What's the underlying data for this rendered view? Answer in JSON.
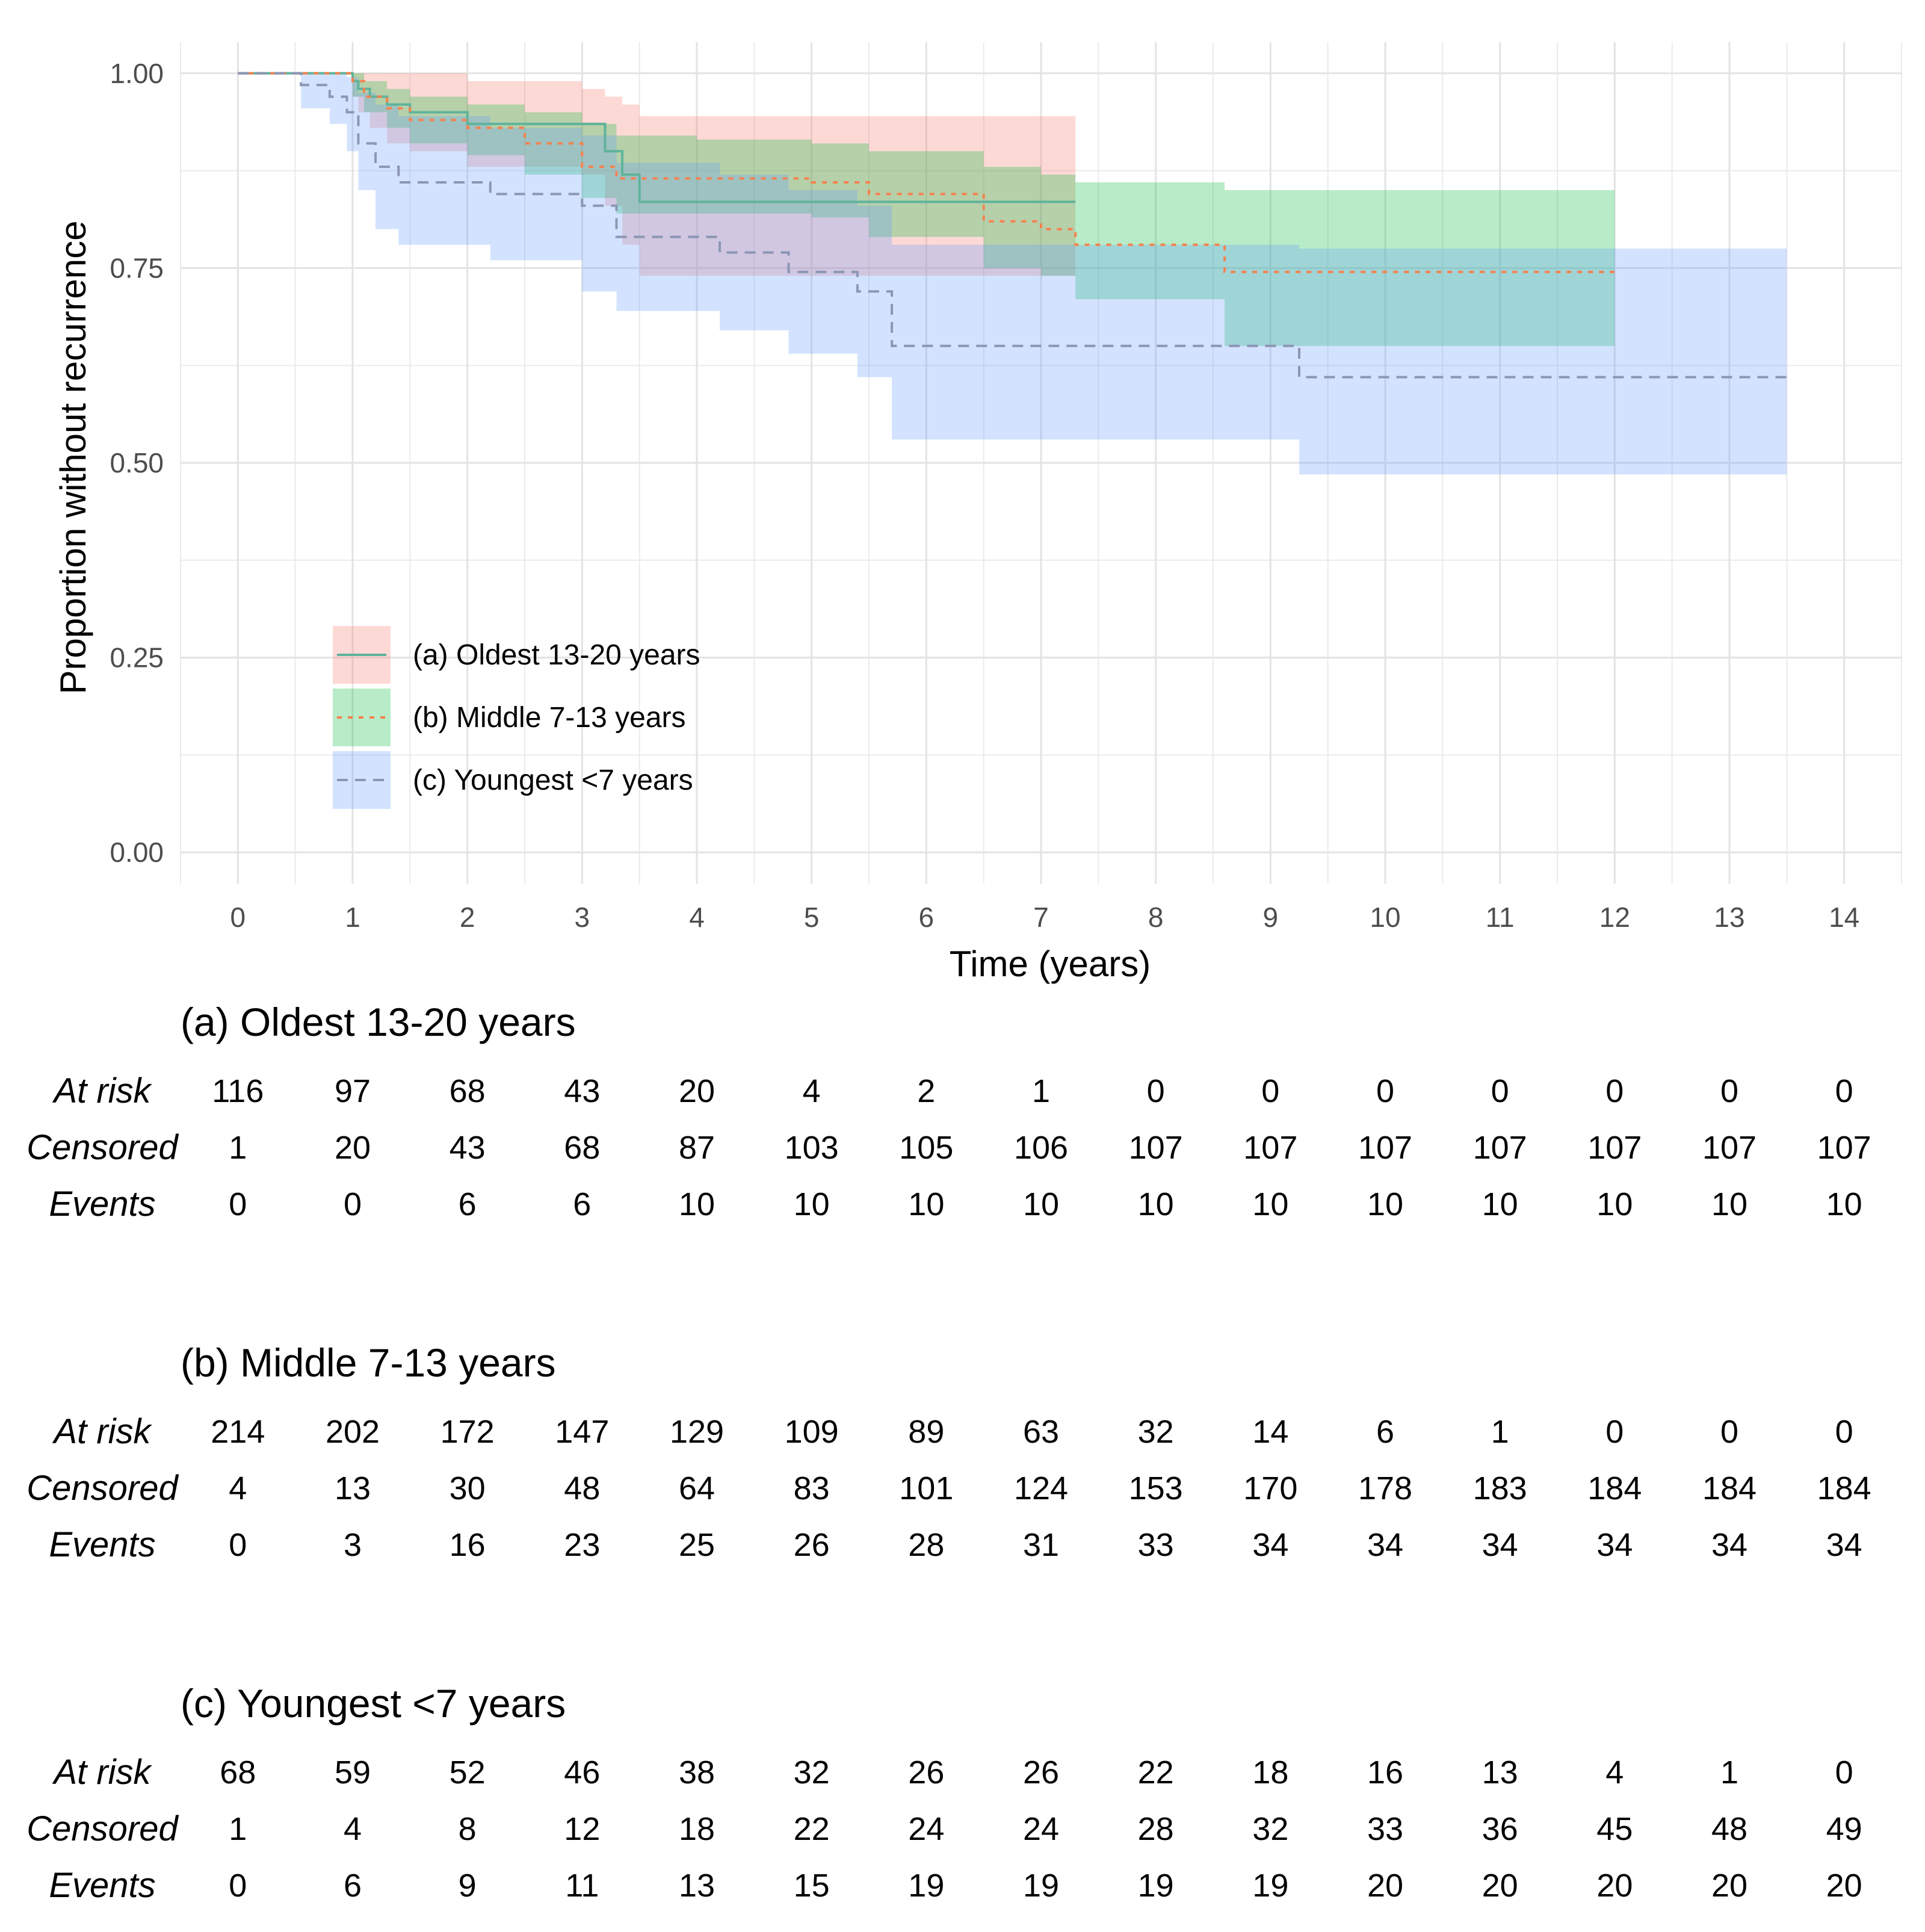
{
  "chart_data": {
    "type": "line",
    "subtype": "kaplan-meier step curves with confidence bands",
    "xlabel": "Time (years)",
    "ylabel": "Proportion without recurrence",
    "xlim": [
      -0.5,
      14.5
    ],
    "ylim": [
      -0.04,
      1.04
    ],
    "x_ticks": [
      0,
      1,
      2,
      3,
      4,
      5,
      6,
      7,
      8,
      9,
      10,
      11,
      12,
      13,
      14
    ],
    "y_ticks": [
      0,
      0.25,
      0.5,
      0.75,
      1.0
    ],
    "y_tick_labels": [
      "0.00",
      "0.25",
      "0.50",
      "0.75",
      "1.00"
    ],
    "grid": true,
    "legend_position": "inside-bottom-left",
    "series": [
      {
        "name": "(a) Oldest 13-20 years",
        "line_color": "#5fb39b",
        "band_color": "#f8766d",
        "line_style": "solid",
        "x": [
          0,
          1.0,
          1.05,
          1.15,
          1.3,
          1.5,
          2.0,
          3.0,
          3.2,
          3.35,
          3.5,
          7.3
        ],
        "y": [
          1.0,
          0.99,
          0.98,
          0.97,
          0.96,
          0.95,
          0.935,
          0.935,
          0.9,
          0.87,
          0.835,
          0.835
        ],
        "upper": [
          1.0,
          1.0,
          1.0,
          1.0,
          1.0,
          1.0,
          0.99,
          0.98,
          0.97,
          0.96,
          0.945,
          0.945
        ],
        "lower": [
          1.0,
          0.97,
          0.95,
          0.93,
          0.91,
          0.9,
          0.88,
          0.87,
          0.83,
          0.78,
          0.74,
          0.74
        ]
      },
      {
        "name": "(b) Middle 7-13 years",
        "line_color": "#f5824f",
        "band_color": "#00ba38",
        "line_style": "dotted",
        "x": [
          0,
          0.6,
          1.0,
          1.1,
          1.3,
          1.5,
          2.0,
          2.5,
          3.0,
          3.3,
          4.0,
          5.0,
          5.5,
          6.5,
          7.0,
          7.3,
          8.6,
          12.0
        ],
        "y": [
          1.0,
          1.0,
          0.99,
          0.97,
          0.955,
          0.94,
          0.93,
          0.91,
          0.88,
          0.865,
          0.865,
          0.86,
          0.845,
          0.81,
          0.8,
          0.78,
          0.745,
          0.745
        ],
        "upper": [
          1.0,
          1.0,
          1.0,
          0.99,
          0.98,
          0.97,
          0.96,
          0.95,
          0.935,
          0.92,
          0.915,
          0.91,
          0.9,
          0.88,
          0.87,
          0.86,
          0.85,
          0.85
        ],
        "lower": [
          1.0,
          1.0,
          0.97,
          0.95,
          0.93,
          0.91,
          0.895,
          0.87,
          0.84,
          0.82,
          0.82,
          0.815,
          0.79,
          0.75,
          0.74,
          0.71,
          0.65,
          0.65
        ]
      },
      {
        "name": "(c) Youngest <7 years",
        "line_color": "#8c96b5",
        "band_color": "#619cff",
        "line_style": "dashed",
        "x": [
          0,
          0.55,
          0.8,
          0.95,
          1.05,
          1.2,
          1.4,
          2.2,
          3.0,
          3.3,
          4.2,
          4.8,
          5.4,
          5.7,
          9.25,
          13.5
        ],
        "y": [
          1.0,
          0.985,
          0.97,
          0.95,
          0.91,
          0.88,
          0.86,
          0.845,
          0.83,
          0.79,
          0.77,
          0.745,
          0.72,
          0.65,
          0.61,
          0.61
        ],
        "upper": [
          1.0,
          1.0,
          1.0,
          0.995,
          0.975,
          0.96,
          0.945,
          0.93,
          0.92,
          0.885,
          0.87,
          0.85,
          0.83,
          0.78,
          0.775,
          0.775
        ],
        "lower": [
          1.0,
          0.955,
          0.935,
          0.9,
          0.85,
          0.8,
          0.78,
          0.76,
          0.72,
          0.695,
          0.67,
          0.64,
          0.61,
          0.53,
          0.485,
          0.485
        ]
      }
    ],
    "risk_tables": [
      {
        "title": "(a) Oldest 13-20 years",
        "rows": [
          {
            "label": "At risk",
            "values": [
              "116",
              "97",
              "68",
              "43",
              "20",
              "4",
              "2",
              "1",
              "0",
              "0",
              "0",
              "0",
              "0",
              "0",
              "0"
            ]
          },
          {
            "label": "Censored",
            "values": [
              "1",
              "20",
              "43",
              "68",
              "87",
              "103",
              "105",
              "106",
              "107",
              "107",
              "107",
              "107",
              "107",
              "107",
              "107"
            ]
          },
          {
            "label": "Events",
            "values": [
              "0",
              "0",
              "6",
              "6",
              "10",
              "10",
              "10",
              "10",
              "10",
              "10",
              "10",
              "10",
              "10",
              "10",
              "10"
            ]
          }
        ]
      },
      {
        "title": "(b) Middle 7-13 years",
        "rows": [
          {
            "label": "At risk",
            "values": [
              "214",
              "202",
              "172",
              "147",
              "129",
              "109",
              "89",
              "63",
              "32",
              "14",
              "6",
              "1",
              "0",
              "0",
              "0"
            ]
          },
          {
            "label": "Censored",
            "values": [
              "4",
              "13",
              "30",
              "48",
              "64",
              "83",
              "101",
              "124",
              "153",
              "170",
              "178",
              "183",
              "184",
              "184",
              "184"
            ]
          },
          {
            "label": "Events",
            "values": [
              "0",
              "3",
              "16",
              "23",
              "25",
              "26",
              "28",
              "31",
              "33",
              "34",
              "34",
              "34",
              "34",
              "34",
              "34"
            ]
          }
        ]
      },
      {
        "title": "(c) Youngest <7 years",
        "rows": [
          {
            "label": "At risk",
            "values": [
              "68",
              "59",
              "52",
              "46",
              "38",
              "32",
              "26",
              "26",
              "22",
              "18",
              "16",
              "13",
              "4",
              "1",
              "0"
            ]
          },
          {
            "label": "Censored",
            "values": [
              "1",
              "4",
              "8",
              "12",
              "18",
              "22",
              "24",
              "24",
              "28",
              "32",
              "33",
              "36",
              "45",
              "48",
              "49"
            ]
          },
          {
            "label": "Events",
            "values": [
              "0",
              "6",
              "9",
              "11",
              "13",
              "15",
              "19",
              "19",
              "19",
              "19",
              "20",
              "20",
              "20",
              "20",
              "20"
            ]
          }
        ]
      }
    ]
  }
}
